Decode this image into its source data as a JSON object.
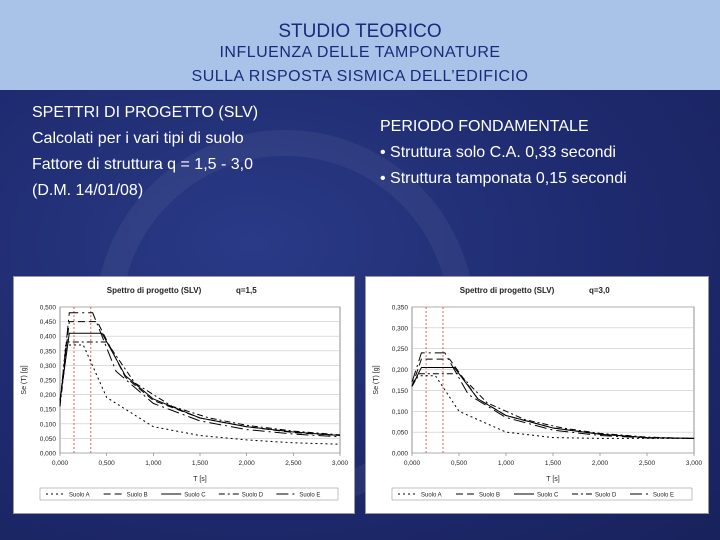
{
  "header": {
    "line1": "STUDIO TEORICO",
    "line2": "INFLUENZA DELLE TAMPONATURE",
    "line3": "SULLA RISPOSTA SISMICA DELL’EDIFICIO"
  },
  "left": {
    "line1": "SPETTRI DI PROGETTO (SLV)",
    "line2": "Calcolati per i vari tipi di suolo",
    "line3": "Fattore di struttura  q = 1,5 - 3,0",
    "line4": "(D.M. 14/01/08)"
  },
  "right": {
    "title": "PERIODO FONDAMENTALE",
    "item1": "• Struttura solo C.A.   0,33 secondi",
    "item2": "• Struttura tamponata  0,15 secondi"
  },
  "colors": {
    "header_bg": "#a9c3e8",
    "header_text": "#1a2a7a",
    "slide_bg": "#1e2a6e",
    "marker_line": "#e05050"
  },
  "chart_data": [
    {
      "type": "line",
      "title": "Spettro di progetto (SLV)",
      "subtitle": "q=1,5",
      "xlabel": "T [s]",
      "ylabel": "Se (T) [g]",
      "xlim": [
        0,
        3
      ],
      "ylim": [
        0,
        0.5
      ],
      "x_ticks": [
        "0,000",
        "0,500",
        "1,000",
        "1,500",
        "2,000",
        "2,500",
        "3,000"
      ],
      "y_ticks": [
        "0,000",
        "0,050",
        "0,100",
        "0,150",
        "0,200",
        "0,250",
        "0,300",
        "0,350",
        "0,400",
        "0,450",
        "0,500"
      ],
      "grid": true,
      "legend_position": "bottom",
      "markers_x": [
        0.15,
        0.33
      ],
      "series": [
        {
          "name": "Suolo A",
          "dash": "2,3",
          "points": [
            [
              0,
              0.16
            ],
            [
              0.06,
              0.37
            ],
            [
              0.25,
              0.37
            ],
            [
              0.5,
              0.19
            ],
            [
              1,
              0.09
            ],
            [
              1.5,
              0.06
            ],
            [
              2,
              0.045
            ],
            [
              2.5,
              0.035
            ],
            [
              3,
              0.03
            ]
          ]
        },
        {
          "name": "Suolo B",
          "dash": "7,4",
          "points": [
            [
              0,
              0.18
            ],
            [
              0.1,
              0.45
            ],
            [
              0.4,
              0.45
            ],
            [
              0.7,
              0.26
            ],
            [
              1,
              0.18
            ],
            [
              1.5,
              0.12
            ],
            [
              2,
              0.09
            ],
            [
              2.5,
              0.07
            ],
            [
              3,
              0.06
            ]
          ]
        },
        {
          "name": "Suolo C",
          "dash": "",
          "points": [
            [
              0,
              0.18
            ],
            [
              0.1,
              0.41
            ],
            [
              0.45,
              0.41
            ],
            [
              0.7,
              0.265
            ],
            [
              1,
              0.185
            ],
            [
              1.5,
              0.12
            ],
            [
              2,
              0.09
            ],
            [
              2.5,
              0.072
            ],
            [
              3,
              0.06
            ]
          ]
        },
        {
          "name": "Suolo D",
          "dash": "6,3,2,3",
          "points": [
            [
              0,
              0.16
            ],
            [
              0.08,
              0.38
            ],
            [
              0.5,
              0.38
            ],
            [
              0.8,
              0.24
            ],
            [
              1.2,
              0.16
            ],
            [
              1.6,
              0.12
            ],
            [
              2,
              0.095
            ],
            [
              2.5,
              0.075
            ],
            [
              3,
              0.062
            ]
          ]
        },
        {
          "name": "Suolo E",
          "dash": "12,4,2,4",
          "points": [
            [
              0,
              0.17
            ],
            [
              0.1,
              0.48
            ],
            [
              0.35,
              0.48
            ],
            [
              0.6,
              0.28
            ],
            [
              1,
              0.17
            ],
            [
              1.5,
              0.11
            ],
            [
              2,
              0.08
            ],
            [
              2.5,
              0.065
            ],
            [
              3,
              0.055
            ]
          ]
        }
      ]
    },
    {
      "type": "line",
      "title": "Spettro di progetto (SLV)",
      "subtitle": "q=3,0",
      "xlabel": "T [s]",
      "ylabel": "Se (T) [g]",
      "xlim": [
        0,
        3
      ],
      "ylim": [
        0,
        0.35
      ],
      "x_ticks": [
        "0,000",
        "0,500",
        "1,000",
        "1,500",
        "2,000",
        "2,500",
        "3,000"
      ],
      "y_ticks": [
        "0,000",
        "0,050",
        "0,100",
        "0,150",
        "0,200",
        "0,250",
        "0,300",
        "0,350"
      ],
      "grid": true,
      "legend_position": "bottom",
      "markers_x": [
        0.15,
        0.33
      ],
      "series": [
        {
          "name": "Suolo A",
          "dash": "2,3",
          "points": [
            [
              0,
              0.16
            ],
            [
              0.06,
              0.185
            ],
            [
              0.25,
              0.185
            ],
            [
              0.5,
              0.1
            ],
            [
              1,
              0.05
            ],
            [
              1.5,
              0.037
            ],
            [
              2,
              0.035
            ],
            [
              2.5,
              0.035
            ],
            [
              3,
              0.035
            ]
          ]
        },
        {
          "name": "Suolo B",
          "dash": "7,4",
          "points": [
            [
              0,
              0.16
            ],
            [
              0.1,
              0.225
            ],
            [
              0.4,
              0.225
            ],
            [
              0.7,
              0.13
            ],
            [
              1,
              0.09
            ],
            [
              1.5,
              0.06
            ],
            [
              2,
              0.045
            ],
            [
              2.5,
              0.037
            ],
            [
              3,
              0.035
            ]
          ]
        },
        {
          "name": "Suolo C",
          "dash": "",
          "points": [
            [
              0,
              0.16
            ],
            [
              0.1,
              0.205
            ],
            [
              0.45,
              0.205
            ],
            [
              0.7,
              0.13
            ],
            [
              1,
              0.09
            ],
            [
              1.5,
              0.06
            ],
            [
              2,
              0.045
            ],
            [
              2.5,
              0.037
            ],
            [
              3,
              0.035
            ]
          ]
        },
        {
          "name": "Suolo D",
          "dash": "6,3,2,3",
          "points": [
            [
              0,
              0.16
            ],
            [
              0.08,
              0.19
            ],
            [
              0.5,
              0.19
            ],
            [
              0.8,
              0.12
            ],
            [
              1.2,
              0.08
            ],
            [
              1.6,
              0.06
            ],
            [
              2,
              0.047
            ],
            [
              2.5,
              0.038
            ],
            [
              3,
              0.035
            ]
          ]
        },
        {
          "name": "Suolo E",
          "dash": "12,4,2,4",
          "points": [
            [
              0,
              0.17
            ],
            [
              0.1,
              0.24
            ],
            [
              0.35,
              0.24
            ],
            [
              0.6,
              0.14
            ],
            [
              1,
              0.085
            ],
            [
              1.5,
              0.055
            ],
            [
              2,
              0.042
            ],
            [
              2.5,
              0.036
            ],
            [
              3,
              0.035
            ]
          ]
        }
      ]
    }
  ]
}
